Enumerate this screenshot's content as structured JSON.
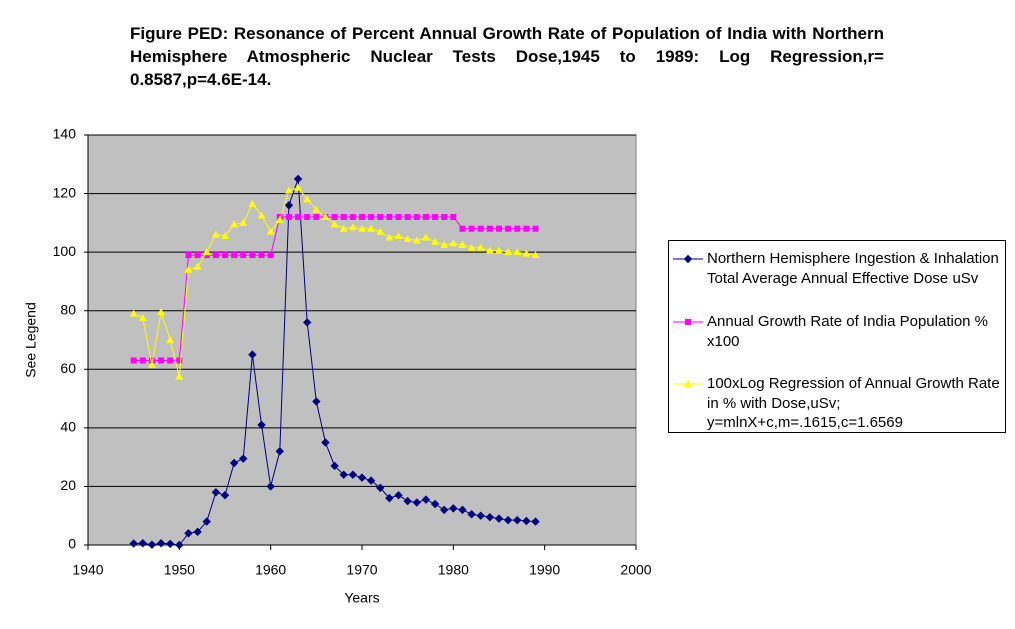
{
  "chart_data": {
    "type": "line",
    "title": "Figure PED: Resonance of Percent Annual Growth Rate of Population of India with Northern Hemisphere Atmospheric Nuclear Tests Dose,1945 to 1989: Log Regression,r= 0.8587,p=4.6E-14.",
    "x_label": "Years",
    "y_label": "See Legend",
    "x": [
      1945,
      1946,
      1947,
      1948,
      1949,
      1950,
      1951,
      1952,
      1953,
      1954,
      1955,
      1956,
      1957,
      1958,
      1959,
      1960,
      1961,
      1962,
      1963,
      1964,
      1965,
      1966,
      1967,
      1968,
      1969,
      1970,
      1971,
      1972,
      1973,
      1974,
      1975,
      1976,
      1977,
      1978,
      1979,
      1980,
      1981,
      1982,
      1983,
      1984,
      1985,
      1986,
      1987,
      1988,
      1989
    ],
    "series": [
      {
        "name": "Northern Hemisphere Ingestion & Inhalation Total Average Annual Effective Dose uSv",
        "color": "#000080",
        "marker": "diamond",
        "values": [
          0.5,
          0.6,
          0.1,
          0.6,
          0.4,
          0,
          4,
          4.5,
          8,
          18,
          17,
          28,
          29.5,
          65,
          41,
          20,
          32,
          116,
          125,
          76,
          49,
          35,
          27,
          24,
          24,
          23,
          22,
          19.5,
          16,
          17,
          15,
          14.5,
          15.5,
          14,
          12,
          12.5,
          12,
          10.5,
          10,
          9.5,
          9,
          8.5,
          8.5,
          8.2,
          8
        ]
      },
      {
        "name": "Annual Growth Rate of  India Population % x100",
        "color": "#ff00ff",
        "marker": "square",
        "values": [
          63,
          63,
          63,
          63,
          63,
          63,
          99,
          99,
          99,
          99,
          99,
          99,
          99,
          99,
          99,
          99,
          112,
          112,
          112,
          112,
          112,
          112,
          112,
          112,
          112,
          112,
          112,
          112,
          112,
          112,
          112,
          112,
          112,
          112,
          112,
          112,
          108,
          108,
          108,
          108,
          108,
          108,
          108,
          108,
          108
        ]
      },
      {
        "name": "100xLog Regression of Annual Growth Rate in % with Dose,uSv; y=mlnX+c,m=.1615,c=1.6569",
        "color": "#ffff00",
        "marker": "triangle",
        "values": [
          79,
          77.5,
          61.5,
          79.5,
          70,
          57.5,
          94,
          95,
          100,
          106,
          105.5,
          109.5,
          110,
          116.5,
          112.5,
          107,
          111,
          121,
          122,
          118,
          114.5,
          112,
          109.5,
          108,
          108.5,
          108,
          108,
          107,
          105,
          105.5,
          104.5,
          104,
          105,
          103.5,
          102.5,
          103,
          102.5,
          101.5,
          101.5,
          100.5,
          100.5,
          100,
          100,
          99.5,
          99
        ]
      }
    ],
    "xlim": [
      1940,
      2000
    ],
    "xticks": [
      1940,
      1950,
      1960,
      1970,
      1980,
      1990,
      2000
    ],
    "ylim": [
      0,
      140
    ],
    "yticks": [
      0,
      20,
      40,
      60,
      80,
      100,
      120,
      140
    ],
    "grid": true,
    "plot_background": "#c0c0c0",
    "legend": "right"
  }
}
